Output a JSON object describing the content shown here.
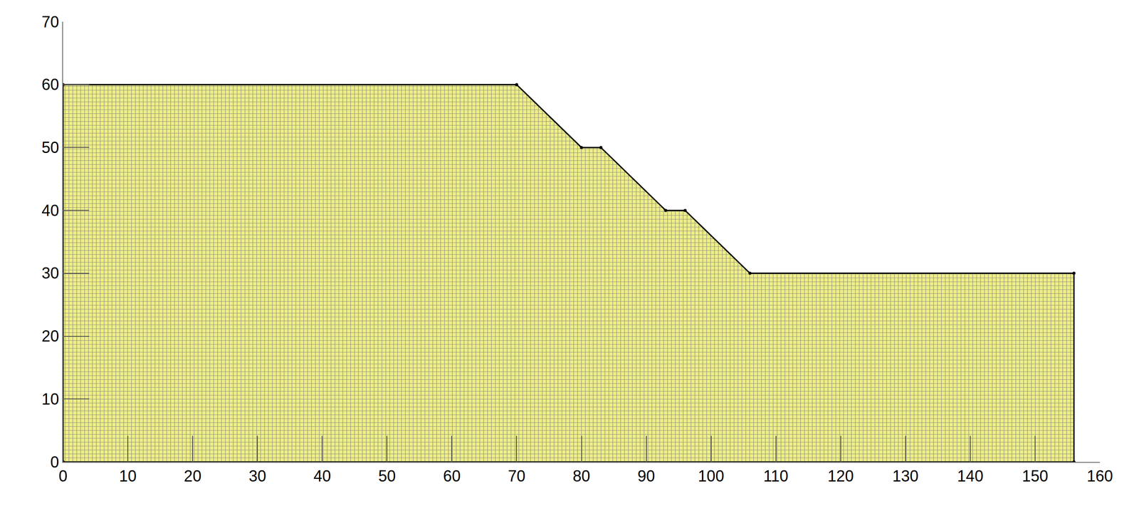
{
  "chart_data": {
    "type": "area",
    "x": [
      0,
      0,
      70,
      80,
      83,
      93,
      96,
      106,
      156,
      156,
      0
    ],
    "values": [
      0,
      60,
      60,
      50,
      50,
      40,
      40,
      30,
      30,
      0,
      0
    ],
    "color": "#eeee88",
    "marker": "circle",
    "xlim": [
      0,
      160
    ],
    "xticks": [
      0,
      10,
      20,
      30,
      40,
      50,
      60,
      70,
      80,
      90,
      100,
      110,
      120,
      130,
      140,
      150,
      160
    ],
    "ylim": [
      0,
      70
    ],
    "yticks": [
      0,
      10,
      20,
      30,
      40,
      50,
      60,
      70
    ],
    "grid": false
  }
}
